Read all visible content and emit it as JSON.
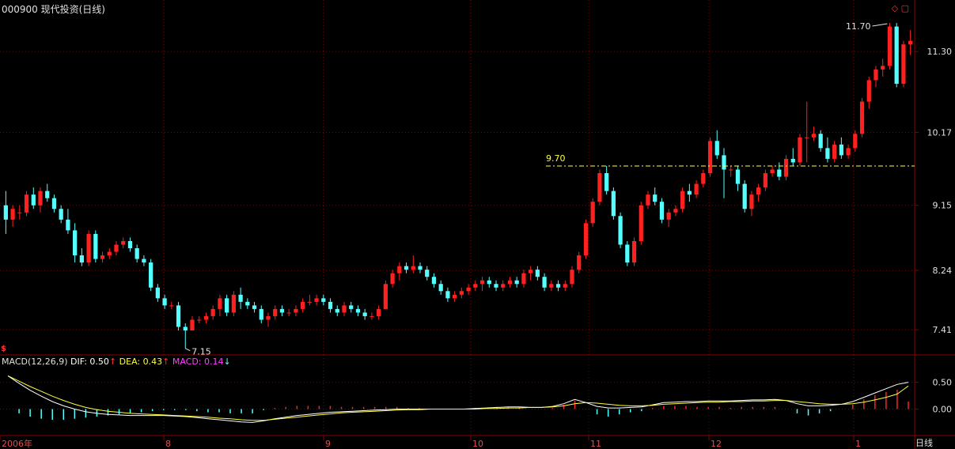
{
  "title": "000900 现代投资(日线)",
  "corner_label": "日线",
  "window_icons": [
    "◇",
    "▢"
  ],
  "colors": {
    "bg": "#000000",
    "grid": "#8b0000",
    "up": "#ff2020",
    "down": "#54ffff",
    "dif": "#ffffff",
    "dea": "#ffff40",
    "macd": "#ff40ff",
    "axis_text": "#e0e0e0"
  },
  "macd_legend": {
    "name": "MACD(12,26,9)",
    "dif_label": "DIF: 0.50",
    "dif_arrow": "↑",
    "dea_label": "DEA: 0.43",
    "dea_arrow": "↑",
    "macd_label": "MACD: 0.14",
    "macd_arrow": "↓",
    "symbol": "$"
  },
  "chart_data": [
    {
      "type": "candlestick",
      "title": "000900 现代投资(日线)",
      "y_ticks": [
        11.3,
        10.17,
        9.15,
        8.24,
        7.41
      ],
      "ylim": [
        7.08,
        11.8
      ],
      "x_ticks": [
        "2006年",
        "8",
        "9",
        "10",
        "11",
        "12",
        "1"
      ],
      "annotations": {
        "high": "11.70",
        "low": "7.15",
        "level": "9.70",
        "level_value": 9.7
      },
      "ohlc": [
        [
          9.15,
          9.35,
          8.75,
          8.95
        ],
        [
          8.95,
          9.15,
          8.85,
          9.1
        ],
        [
          9.05,
          9.15,
          8.95,
          9.05
        ],
        [
          9.05,
          9.35,
          9.0,
          9.3
        ],
        [
          9.3,
          9.4,
          9.1,
          9.15
        ],
        [
          9.15,
          9.4,
          9.05,
          9.35
        ],
        [
          9.35,
          9.45,
          9.2,
          9.25
        ],
        [
          9.25,
          9.3,
          9.05,
          9.1
        ],
        [
          9.1,
          9.15,
          8.9,
          8.95
        ],
        [
          8.95,
          9.1,
          8.75,
          8.8
        ],
        [
          8.8,
          8.9,
          8.35,
          8.45
        ],
        [
          8.45,
          8.55,
          8.3,
          8.35
        ],
        [
          8.35,
          8.8,
          8.3,
          8.75
        ],
        [
          8.75,
          8.8,
          8.35,
          8.4
        ],
        [
          8.4,
          8.5,
          8.35,
          8.45
        ],
        [
          8.45,
          8.55,
          8.4,
          8.5
        ],
        [
          8.5,
          8.65,
          8.45,
          8.6
        ],
        [
          8.6,
          8.7,
          8.55,
          8.65
        ],
        [
          8.65,
          8.7,
          8.5,
          8.55
        ],
        [
          8.55,
          8.6,
          8.35,
          8.4
        ],
        [
          8.4,
          8.45,
          8.3,
          8.35
        ],
        [
          8.35,
          8.4,
          7.95,
          8.0
        ],
        [
          8.0,
          8.05,
          7.8,
          7.85
        ],
        [
          7.85,
          7.9,
          7.7,
          7.75
        ],
        [
          7.75,
          7.8,
          7.7,
          7.75
        ],
        [
          7.75,
          7.8,
          7.4,
          7.45
        ],
        [
          7.45,
          7.5,
          7.15,
          7.4
        ],
        [
          7.4,
          7.6,
          7.4,
          7.55
        ],
        [
          7.55,
          7.6,
          7.5,
          7.55
        ],
        [
          7.55,
          7.65,
          7.5,
          7.6
        ],
        [
          7.6,
          7.75,
          7.55,
          7.7
        ],
        [
          7.7,
          7.9,
          7.6,
          7.85
        ],
        [
          7.85,
          7.9,
          7.6,
          7.65
        ],
        [
          7.65,
          7.95,
          7.6,
          7.9
        ],
        [
          7.9,
          8.0,
          7.7,
          7.8
        ],
        [
          7.8,
          7.85,
          7.7,
          7.75
        ],
        [
          7.75,
          7.8,
          7.65,
          7.7
        ],
        [
          7.7,
          7.75,
          7.5,
          7.55
        ],
        [
          7.55,
          7.65,
          7.45,
          7.6
        ],
        [
          7.6,
          7.75,
          7.55,
          7.7
        ],
        [
          7.7,
          7.75,
          7.6,
          7.65
        ],
        [
          7.65,
          7.7,
          7.6,
          7.65
        ],
        [
          7.65,
          7.75,
          7.6,
          7.7
        ],
        [
          7.7,
          7.85,
          7.65,
          7.8
        ],
        [
          7.8,
          7.9,
          7.75,
          7.8
        ],
        [
          7.8,
          7.9,
          7.75,
          7.85
        ],
        [
          7.85,
          7.9,
          7.75,
          7.8
        ],
        [
          7.8,
          7.85,
          7.65,
          7.7
        ],
        [
          7.7,
          7.75,
          7.6,
          7.65
        ],
        [
          7.65,
          7.8,
          7.6,
          7.75
        ],
        [
          7.75,
          7.8,
          7.65,
          7.7
        ],
        [
          7.7,
          7.75,
          7.6,
          7.65
        ],
        [
          7.65,
          7.7,
          7.55,
          7.6
        ],
        [
          7.6,
          7.65,
          7.55,
          7.6
        ],
        [
          7.6,
          7.75,
          7.55,
          7.7
        ],
        [
          7.7,
          8.1,
          7.7,
          8.05
        ],
        [
          8.05,
          8.25,
          8.0,
          8.2
        ],
        [
          8.2,
          8.35,
          8.1,
          8.3
        ],
        [
          8.3,
          8.35,
          8.2,
          8.25
        ],
        [
          8.25,
          8.45,
          8.2,
          8.3
        ],
        [
          8.3,
          8.35,
          8.2,
          8.25
        ],
        [
          8.25,
          8.3,
          8.1,
          8.15
        ],
        [
          8.15,
          8.2,
          8.0,
          8.05
        ],
        [
          8.05,
          8.1,
          7.9,
          7.95
        ],
        [
          7.95,
          8.0,
          7.8,
          7.85
        ],
        [
          7.85,
          7.95,
          7.8,
          7.9
        ],
        [
          7.9,
          8.0,
          7.85,
          7.95
        ],
        [
          7.95,
          8.05,
          7.9,
          8.0
        ],
        [
          8.0,
          8.1,
          7.95,
          8.05
        ],
        [
          8.05,
          8.15,
          7.95,
          8.1
        ],
        [
          8.1,
          8.15,
          8.0,
          8.05
        ],
        [
          8.05,
          8.1,
          7.95,
          8.0
        ],
        [
          8.0,
          8.1,
          7.95,
          8.05
        ],
        [
          8.05,
          8.15,
          8.0,
          8.1
        ],
        [
          8.1,
          8.15,
          8.0,
          8.05
        ],
        [
          8.05,
          8.25,
          8.0,
          8.2
        ],
        [
          8.2,
          8.3,
          8.1,
          8.25
        ],
        [
          8.25,
          8.3,
          8.1,
          8.15
        ],
        [
          8.15,
          8.2,
          7.95,
          8.0
        ],
        [
          8.0,
          8.1,
          7.95,
          8.05
        ],
        [
          8.05,
          8.1,
          7.95,
          8.0
        ],
        [
          8.0,
          8.1,
          7.95,
          8.05
        ],
        [
          8.05,
          8.3,
          8.0,
          8.25
        ],
        [
          8.25,
          8.5,
          8.2,
          8.45
        ],
        [
          8.45,
          8.95,
          8.4,
          8.9
        ],
        [
          8.9,
          9.25,
          8.85,
          9.2
        ],
        [
          9.2,
          9.65,
          9.15,
          9.6
        ],
        [
          9.6,
          9.7,
          9.3,
          9.35
        ],
        [
          9.35,
          9.4,
          8.95,
          9.0
        ],
        [
          9.0,
          9.05,
          8.55,
          8.6
        ],
        [
          8.6,
          8.65,
          8.3,
          8.35
        ],
        [
          8.35,
          8.7,
          8.3,
          8.65
        ],
        [
          8.65,
          9.2,
          8.6,
          9.15
        ],
        [
          9.15,
          9.35,
          9.1,
          9.3
        ],
        [
          9.3,
          9.4,
          9.15,
          9.2
        ],
        [
          9.2,
          9.25,
          8.9,
          8.95
        ],
        [
          8.95,
          9.1,
          8.85,
          9.05
        ],
        [
          9.05,
          9.15,
          9.0,
          9.1
        ],
        [
          9.1,
          9.4,
          9.05,
          9.35
        ],
        [
          9.35,
          9.45,
          9.2,
          9.3
        ],
        [
          9.3,
          9.5,
          9.25,
          9.45
        ],
        [
          9.45,
          9.65,
          9.4,
          9.6
        ],
        [
          9.6,
          10.1,
          9.55,
          10.05
        ],
        [
          10.05,
          10.2,
          9.8,
          9.85
        ],
        [
          9.85,
          9.95,
          9.25,
          9.65
        ],
        [
          9.65,
          9.7,
          9.55,
          9.65
        ],
        [
          9.65,
          9.7,
          9.35,
          9.45
        ],
        [
          9.45,
          9.5,
          9.05,
          9.1
        ],
        [
          9.1,
          9.35,
          9.0,
          9.3
        ],
        [
          9.3,
          9.45,
          9.2,
          9.4
        ],
        [
          9.4,
          9.65,
          9.35,
          9.6
        ],
        [
          9.6,
          9.7,
          9.55,
          9.65
        ],
        [
          9.65,
          9.75,
          9.5,
          9.55
        ],
        [
          9.55,
          9.85,
          9.5,
          9.8
        ],
        [
          9.8,
          9.95,
          9.7,
          9.75
        ],
        [
          9.75,
          10.15,
          9.7,
          10.1
        ],
        [
          10.1,
          10.6,
          9.75,
          10.1
        ],
        [
          10.1,
          10.25,
          10.05,
          10.15
        ],
        [
          10.15,
          10.2,
          9.9,
          9.95
        ],
        [
          9.95,
          10.1,
          9.75,
          9.8
        ],
        [
          9.8,
          10.05,
          9.75,
          10.0
        ],
        [
          10.0,
          10.1,
          9.8,
          9.85
        ],
        [
          9.85,
          10.0,
          9.8,
          9.95
        ],
        [
          9.95,
          10.2,
          9.9,
          10.15
        ],
        [
          10.15,
          10.65,
          10.1,
          10.6
        ],
        [
          10.6,
          10.95,
          10.5,
          10.9
        ],
        [
          10.9,
          11.1,
          10.8,
          11.05
        ],
        [
          11.05,
          11.2,
          10.95,
          11.1
        ],
        [
          11.1,
          11.7,
          11.05,
          11.65
        ],
        [
          11.65,
          11.7,
          10.8,
          10.85
        ],
        [
          10.85,
          11.45,
          10.8,
          11.4
        ],
        [
          11.4,
          11.6,
          11.25,
          11.45
        ]
      ]
    },
    {
      "type": "bar",
      "title": "MACD(12,26,9)",
      "y_ticks": [
        0.5,
        0.0
      ],
      "ylim": [
        -0.45,
        0.7
      ],
      "series": [
        {
          "name": "DIF",
          "values": [
            0.62,
            0.48,
            0.35,
            0.24,
            0.14,
            0.06,
            0.0,
            -0.05,
            -0.08,
            -0.1,
            -0.11,
            -0.12,
            -0.12,
            -0.12,
            -0.12,
            -0.13,
            -0.14,
            -0.16,
            -0.18,
            -0.2,
            -0.22,
            -0.24,
            -0.25,
            -0.22,
            -0.18,
            -0.15,
            -0.12,
            -0.1,
            -0.08,
            -0.06,
            -0.05,
            -0.04,
            -0.03,
            -0.02,
            -0.01,
            0.0,
            0.0,
            0.0,
            0.0,
            0.0,
            0.0,
            0.0,
            0.01,
            0.02,
            0.03,
            0.04,
            0.04,
            0.03,
            0.03,
            0.05,
            0.1,
            0.18,
            0.12,
            0.05,
            0.02,
            0.02,
            0.03,
            0.04,
            0.08,
            0.12,
            0.13,
            0.14,
            0.14,
            0.15,
            0.15,
            0.15,
            0.16,
            0.17,
            0.17,
            0.18,
            0.16,
            0.1,
            0.06,
            0.06,
            0.07,
            0.09,
            0.14,
            0.22,
            0.3,
            0.38,
            0.46,
            0.5
          ]
        },
        {
          "name": "DEA",
          "values": [
            0.62,
            0.52,
            0.42,
            0.33,
            0.24,
            0.16,
            0.09,
            0.03,
            -0.01,
            -0.04,
            -0.06,
            -0.08,
            -0.09,
            -0.1,
            -0.11,
            -0.12,
            -0.13,
            -0.14,
            -0.15,
            -0.17,
            -0.18,
            -0.2,
            -0.21,
            -0.21,
            -0.19,
            -0.17,
            -0.15,
            -0.13,
            -0.11,
            -0.09,
            -0.07,
            -0.06,
            -0.05,
            -0.04,
            -0.03,
            -0.02,
            -0.01,
            -0.01,
            0.0,
            0.0,
            0.0,
            0.0,
            0.0,
            0.01,
            0.01,
            0.02,
            0.02,
            0.03,
            0.03,
            0.04,
            0.06,
            0.1,
            0.12,
            0.11,
            0.09,
            0.07,
            0.06,
            0.06,
            0.07,
            0.09,
            0.1,
            0.11,
            0.12,
            0.13,
            0.13,
            0.14,
            0.14,
            0.15,
            0.15,
            0.16,
            0.16,
            0.14,
            0.12,
            0.1,
            0.09,
            0.09,
            0.1,
            0.13,
            0.17,
            0.22,
            0.28,
            0.43
          ]
        },
        {
          "name": "MACD",
          "values": [
            0.0,
            -0.08,
            -0.14,
            -0.18,
            -0.2,
            -0.2,
            -0.18,
            -0.16,
            -0.14,
            -0.12,
            -0.1,
            -0.08,
            -0.06,
            -0.04,
            -0.02,
            -0.02,
            -0.02,
            -0.04,
            -0.06,
            -0.06,
            -0.08,
            -0.08,
            -0.08,
            -0.02,
            0.02,
            0.04,
            0.06,
            0.06,
            0.06,
            0.06,
            0.04,
            0.04,
            0.04,
            0.04,
            0.04,
            0.04,
            0.02,
            0.02,
            0.0,
            0.0,
            0.0,
            0.0,
            0.02,
            0.02,
            0.04,
            0.04,
            0.04,
            0.0,
            0.0,
            0.02,
            0.08,
            0.16,
            0.0,
            -0.1,
            -0.14,
            -0.1,
            -0.06,
            -0.04,
            0.02,
            0.06,
            0.06,
            0.06,
            0.04,
            0.04,
            0.04,
            0.02,
            0.04,
            0.04,
            0.04,
            0.04,
            0.0,
            -0.08,
            -0.12,
            -0.08,
            -0.04,
            0.0,
            0.08,
            0.18,
            0.26,
            0.32,
            0.36,
            0.14
          ]
        }
      ]
    }
  ]
}
